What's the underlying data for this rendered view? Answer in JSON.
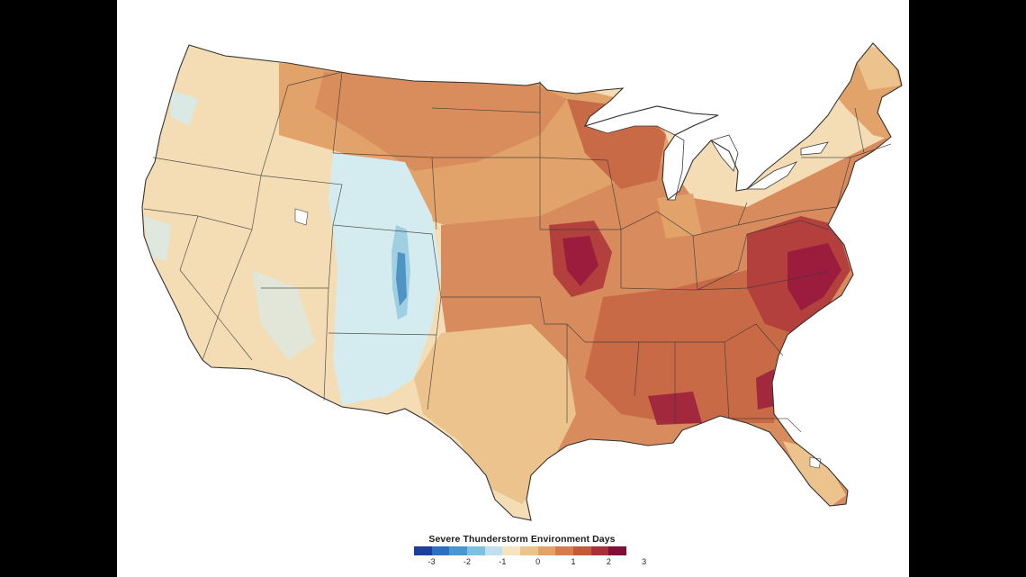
{
  "legend": {
    "title": "Severe Thunderstorm Environment Days",
    "ticks": [
      "-3",
      "-2",
      "-1",
      "0",
      "1",
      "2",
      "3"
    ],
    "colors": [
      "#1d3f9a",
      "#2f6fc0",
      "#4c96cf",
      "#7fbfe0",
      "#bfe0ee",
      "#f6e3c0",
      "#ecc38c",
      "#e1a36a",
      "#d27e4f",
      "#c25a3c",
      "#a8303a",
      "#7d1035"
    ]
  },
  "map": {
    "colors": {
      "neutral": "#f4ddb4",
      "light_blue": "#d4ecf0",
      "mid_blue": "#9fcfe0",
      "dark_blue": "#4e95c6",
      "light_orange": "#e8b887",
      "orange": "#d88b5c",
      "dark_orange": "#c86a45",
      "red": "#b3403c",
      "crimson": "#9b1c3c",
      "water": "#ffffff",
      "border": "#3a3a3a"
    }
  }
}
